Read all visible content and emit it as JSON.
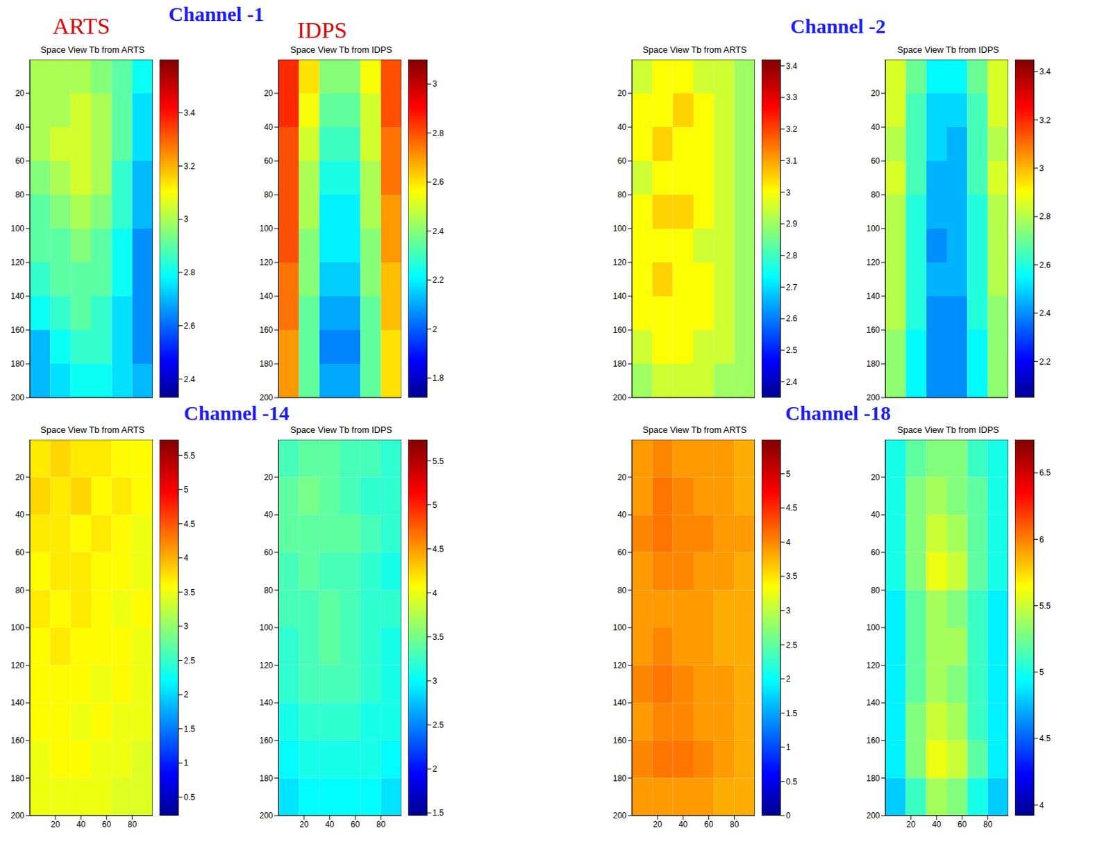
{
  "chart_data": [
    {
      "type": "heatmap",
      "title": "Space View Tb from ARTS",
      "annotations": [
        "Channel -1",
        "ARTS"
      ],
      "tick_labels": "y",
      "xlim": [
        0,
        96
      ],
      "ylim": [
        0,
        200
      ],
      "yticks": [
        20,
        40,
        60,
        80,
        100,
        120,
        140,
        160,
        180,
        200
      ],
      "x_bins": [
        0,
        16,
        32,
        48,
        64,
        80,
        96
      ],
      "y_bins": [
        0,
        20,
        40,
        60,
        80,
        100,
        120,
        140,
        160,
        180,
        200
      ],
      "cells": [
        [
          3.0,
          3.0,
          3.0,
          2.95,
          2.9,
          2.8
        ],
        [
          3.0,
          3.0,
          3.05,
          3.0,
          2.9,
          2.75
        ],
        [
          3.0,
          3.05,
          3.05,
          3.0,
          2.9,
          2.75
        ],
        [
          2.95,
          3.0,
          3.05,
          3.0,
          2.85,
          2.7
        ],
        [
          2.9,
          2.95,
          3.0,
          2.95,
          2.85,
          2.7
        ],
        [
          2.9,
          2.9,
          2.95,
          2.9,
          2.8,
          2.65
        ],
        [
          2.85,
          2.9,
          2.9,
          2.9,
          2.8,
          2.65
        ],
        [
          2.8,
          2.85,
          2.9,
          2.85,
          2.75,
          2.65
        ],
        [
          2.7,
          2.8,
          2.85,
          2.85,
          2.75,
          2.65
        ],
        [
          2.7,
          2.75,
          2.8,
          2.8,
          2.75,
          2.7
        ]
      ],
      "colorbar": {
        "range": [
          2.33,
          3.6
        ],
        "ticks": [
          2.4,
          2.6,
          2.8,
          3,
          3.2,
          3.4
        ]
      }
    },
    {
      "type": "heatmap",
      "title": "Space View Tb from IDPS",
      "annotations": [
        "IDPS"
      ],
      "tick_labels": "y",
      "xlim": [
        0,
        96
      ],
      "ylim": [
        0,
        200
      ],
      "yticks": [
        20,
        40,
        60,
        80,
        100,
        120,
        140,
        160,
        180,
        200
      ],
      "x_bins": [
        0,
        16,
        32,
        48,
        64,
        80,
        96
      ],
      "y_bins": [
        0,
        20,
        40,
        60,
        80,
        100,
        120,
        140,
        160,
        180,
        200
      ],
      "cells": [
        [
          2.85,
          2.6,
          2.4,
          2.4,
          2.55,
          2.8
        ],
        [
          2.85,
          2.55,
          2.35,
          2.35,
          2.5,
          2.8
        ],
        [
          2.8,
          2.5,
          2.3,
          2.3,
          2.5,
          2.75
        ],
        [
          2.8,
          2.45,
          2.25,
          2.25,
          2.45,
          2.75
        ],
        [
          2.8,
          2.45,
          2.2,
          2.2,
          2.45,
          2.7
        ],
        [
          2.8,
          2.4,
          2.2,
          2.2,
          2.4,
          2.7
        ],
        [
          2.75,
          2.4,
          2.15,
          2.15,
          2.4,
          2.65
        ],
        [
          2.75,
          2.35,
          2.1,
          2.1,
          2.35,
          2.65
        ],
        [
          2.7,
          2.35,
          2.05,
          2.05,
          2.35,
          2.6
        ],
        [
          2.7,
          2.35,
          2.1,
          2.1,
          2.35,
          2.6
        ]
      ],
      "colorbar": {
        "range": [
          1.72,
          3.1
        ],
        "ticks": [
          1.8,
          2,
          2.2,
          2.4,
          2.6,
          2.8,
          3
        ]
      }
    },
    {
      "type": "heatmap",
      "title": "Space View Tb from ARTS",
      "annotations": [
        "Channel -2"
      ],
      "tick_labels": "y",
      "xlim": [
        0,
        96
      ],
      "ylim": [
        0,
        200
      ],
      "yticks": [
        20,
        40,
        60,
        80,
        100,
        120,
        140,
        160,
        180,
        200
      ],
      "x_bins": [
        0,
        16,
        32,
        48,
        64,
        80,
        96
      ],
      "y_bins": [
        0,
        20,
        40,
        60,
        80,
        100,
        120,
        140,
        160,
        180,
        200
      ],
      "cells": [
        [
          2.95,
          3.0,
          3.0,
          2.95,
          2.95,
          2.9
        ],
        [
          3.0,
          3.0,
          3.05,
          3.0,
          2.95,
          2.9
        ],
        [
          3.0,
          3.05,
          3.0,
          3.0,
          2.95,
          2.9
        ],
        [
          2.95,
          3.0,
          3.0,
          3.0,
          2.95,
          2.9
        ],
        [
          3.0,
          3.05,
          3.05,
          3.0,
          2.95,
          2.9
        ],
        [
          3.0,
          3.0,
          3.0,
          2.95,
          2.95,
          2.9
        ],
        [
          3.0,
          3.05,
          3.0,
          3.0,
          2.95,
          2.9
        ],
        [
          3.0,
          3.0,
          3.0,
          3.0,
          2.95,
          2.9
        ],
        [
          2.95,
          3.0,
          3.0,
          2.95,
          2.95,
          2.9
        ],
        [
          2.9,
          2.95,
          2.95,
          2.95,
          2.9,
          2.9
        ]
      ],
      "colorbar": {
        "range": [
          2.35,
          3.42
        ],
        "ticks": [
          2.4,
          2.5,
          2.6,
          2.7,
          2.8,
          2.9,
          3,
          3.1,
          3.2,
          3.3,
          3.4
        ]
      }
    },
    {
      "type": "heatmap",
      "title": "Space View Tb from IDPS",
      "tick_labels": "y",
      "xlim": [
        0,
        96
      ],
      "ylim": [
        0,
        200
      ],
      "yticks": [
        20,
        40,
        60,
        80,
        100,
        120,
        140,
        160,
        180,
        200
      ],
      "x_bins": [
        0,
        16,
        32,
        48,
        64,
        80,
        96
      ],
      "y_bins": [
        0,
        20,
        40,
        60,
        80,
        100,
        120,
        140,
        160,
        180,
        200
      ],
      "cells": [
        [
          2.85,
          2.7,
          2.55,
          2.55,
          2.7,
          2.85
        ],
        [
          2.85,
          2.65,
          2.5,
          2.5,
          2.65,
          2.85
        ],
        [
          2.8,
          2.65,
          2.5,
          2.45,
          2.65,
          2.8
        ],
        [
          2.85,
          2.65,
          2.45,
          2.45,
          2.65,
          2.85
        ],
        [
          2.8,
          2.6,
          2.45,
          2.45,
          2.6,
          2.8
        ],
        [
          2.8,
          2.6,
          2.4,
          2.45,
          2.6,
          2.8
        ],
        [
          2.8,
          2.6,
          2.45,
          2.45,
          2.6,
          2.8
        ],
        [
          2.8,
          2.6,
          2.4,
          2.4,
          2.6,
          2.75
        ],
        [
          2.75,
          2.55,
          2.4,
          2.4,
          2.55,
          2.75
        ],
        [
          2.75,
          2.55,
          2.4,
          2.4,
          2.55,
          2.75
        ]
      ],
      "colorbar": {
        "range": [
          2.05,
          3.45
        ],
        "ticks": [
          2.2,
          2.4,
          2.6,
          2.8,
          3,
          3.2,
          3.4
        ]
      }
    },
    {
      "type": "heatmap",
      "title": "Space View Tb from ARTS",
      "annotations": [
        "Channel -14"
      ],
      "xlim": [
        0,
        96
      ],
      "ylim": [
        0,
        200
      ],
      "xticks": [
        20,
        40,
        60,
        80
      ],
      "yticks": [
        20,
        40,
        60,
        80,
        100,
        120,
        140,
        160,
        180,
        200
      ],
      "x_bins": [
        0,
        16,
        32,
        48,
        64,
        80,
        96
      ],
      "y_bins": [
        0,
        20,
        40,
        60,
        80,
        100,
        120,
        140,
        160,
        180,
        200
      ],
      "cells": [
        [
          3.7,
          3.8,
          3.7,
          3.7,
          3.6,
          3.6
        ],
        [
          3.8,
          3.7,
          3.8,
          3.6,
          3.7,
          3.6
        ],
        [
          3.7,
          3.7,
          3.6,
          3.7,
          3.6,
          3.5
        ],
        [
          3.6,
          3.7,
          3.7,
          3.6,
          3.6,
          3.5
        ],
        [
          3.7,
          3.6,
          3.7,
          3.6,
          3.5,
          3.6
        ],
        [
          3.6,
          3.7,
          3.6,
          3.6,
          3.6,
          3.5
        ],
        [
          3.6,
          3.6,
          3.6,
          3.5,
          3.6,
          3.5
        ],
        [
          3.6,
          3.6,
          3.5,
          3.6,
          3.5,
          3.5
        ],
        [
          3.5,
          3.6,
          3.6,
          3.5,
          3.5,
          3.4
        ],
        [
          3.5,
          3.5,
          3.5,
          3.5,
          3.4,
          3.4
        ]
      ],
      "colorbar": {
        "range": [
          0.23,
          5.73
        ],
        "ticks": [
          0.5,
          1,
          1.5,
          2,
          2.5,
          3,
          3.5,
          4,
          4.5,
          5,
          5.5
        ]
      }
    },
    {
      "type": "heatmap",
      "title": "Space View Tb from IDPS",
      "xlim": [
        0,
        96
      ],
      "ylim": [
        0,
        200
      ],
      "xticks": [
        20,
        40,
        60,
        80
      ],
      "yticks": [
        20,
        40,
        60,
        80,
        100,
        120,
        140,
        160,
        180,
        200
      ],
      "x_bins": [
        0,
        16,
        32,
        48,
        64,
        80,
        96
      ],
      "y_bins": [
        0,
        20,
        40,
        60,
        80,
        100,
        120,
        140,
        160,
        180,
        200
      ],
      "cells": [
        [
          3.3,
          3.4,
          3.4,
          3.3,
          3.3,
          3.2
        ],
        [
          3.4,
          3.5,
          3.4,
          3.3,
          3.2,
          3.2
        ],
        [
          3.4,
          3.4,
          3.4,
          3.4,
          3.3,
          3.2
        ],
        [
          3.3,
          3.4,
          3.3,
          3.3,
          3.2,
          3.1
        ],
        [
          3.3,
          3.3,
          3.4,
          3.3,
          3.2,
          3.2
        ],
        [
          3.2,
          3.3,
          3.4,
          3.3,
          3.2,
          3.1
        ],
        [
          3.2,
          3.3,
          3.3,
          3.3,
          3.2,
          3.1
        ],
        [
          3.1,
          3.2,
          3.2,
          3.2,
          3.1,
          3.1
        ],
        [
          3.0,
          3.1,
          3.1,
          3.1,
          3.1,
          3.0
        ],
        [
          2.9,
          3.0,
          3.0,
          3.0,
          3.0,
          2.9
        ]
      ],
      "colorbar": {
        "range": [
          1.47,
          5.74
        ],
        "ticks": [
          1.5,
          2,
          2.5,
          3,
          3.5,
          4,
          4.5,
          5,
          5.5
        ]
      }
    },
    {
      "type": "heatmap",
      "title": "Space View Tb from ARTS",
      "annotations": [
        "Channel -18"
      ],
      "xlim": [
        0,
        96
      ],
      "ylim": [
        0,
        200
      ],
      "xticks": [
        20,
        40,
        60,
        80
      ],
      "yticks": [
        20,
        40,
        60,
        80,
        100,
        120,
        140,
        160,
        180,
        200
      ],
      "x_bins": [
        0,
        16,
        32,
        48,
        64,
        80,
        96
      ],
      "y_bins": [
        0,
        20,
        40,
        60,
        80,
        100,
        120,
        140,
        160,
        180,
        200
      ],
      "cells": [
        [
          3.9,
          4.0,
          3.9,
          3.9,
          3.9,
          3.8
        ],
        [
          3.9,
          4.1,
          4.0,
          3.9,
          3.9,
          3.8
        ],
        [
          4.0,
          4.1,
          4.0,
          4.0,
          3.9,
          3.9
        ],
        [
          3.9,
          4.0,
          4.0,
          3.9,
          3.9,
          3.8
        ],
        [
          3.9,
          3.9,
          3.9,
          3.9,
          3.8,
          3.8
        ],
        [
          3.9,
          4.0,
          3.9,
          3.9,
          3.8,
          3.8
        ],
        [
          4.0,
          4.1,
          4.0,
          3.9,
          3.9,
          3.8
        ],
        [
          3.9,
          4.0,
          4.0,
          3.9,
          3.9,
          3.8
        ],
        [
          4.0,
          4.1,
          4.1,
          4.0,
          3.9,
          3.8
        ],
        [
          3.9,
          3.9,
          3.9,
          3.9,
          3.8,
          3.8
        ]
      ],
      "colorbar": {
        "range": [
          0,
          5.5
        ],
        "ticks": [
          0,
          0.5,
          1,
          1.5,
          2,
          2.5,
          3,
          3.5,
          4,
          4.5,
          5
        ]
      }
    },
    {
      "type": "heatmap",
      "title": "Space View Tb from IDPS",
      "xlim": [
        0,
        96
      ],
      "ylim": [
        0,
        200
      ],
      "xticks": [
        20,
        40,
        60,
        80
      ],
      "yticks": [
        20,
        40,
        60,
        80,
        100,
        120,
        140,
        160,
        180,
        200
      ],
      "x_bins": [
        0,
        16,
        32,
        48,
        64,
        80,
        96
      ],
      "y_bins": [
        0,
        20,
        40,
        60,
        80,
        100,
        120,
        140,
        160,
        180,
        200
      ],
      "cells": [
        [
          5.0,
          5.2,
          5.3,
          5.3,
          5.1,
          5.0
        ],
        [
          5.0,
          5.3,
          5.4,
          5.3,
          5.2,
          5.0
        ],
        [
          5.0,
          5.3,
          5.5,
          5.4,
          5.2,
          5.0
        ],
        [
          5.0,
          5.3,
          5.6,
          5.5,
          5.2,
          5.0
        ],
        [
          4.9,
          5.2,
          5.4,
          5.3,
          5.1,
          4.9
        ],
        [
          4.9,
          5.2,
          5.4,
          5.4,
          5.1,
          4.9
        ],
        [
          4.9,
          5.2,
          5.4,
          5.3,
          5.1,
          4.9
        ],
        [
          4.9,
          5.3,
          5.5,
          5.4,
          5.1,
          4.9
        ],
        [
          4.9,
          5.3,
          5.6,
          5.5,
          5.2,
          4.9
        ],
        [
          4.8,
          5.1,
          5.4,
          5.3,
          5.0,
          4.8
        ]
      ],
      "colorbar": {
        "range": [
          3.92,
          6.75
        ],
        "ticks": [
          4,
          4.5,
          5,
          5.5,
          6,
          6.5
        ]
      }
    }
  ]
}
